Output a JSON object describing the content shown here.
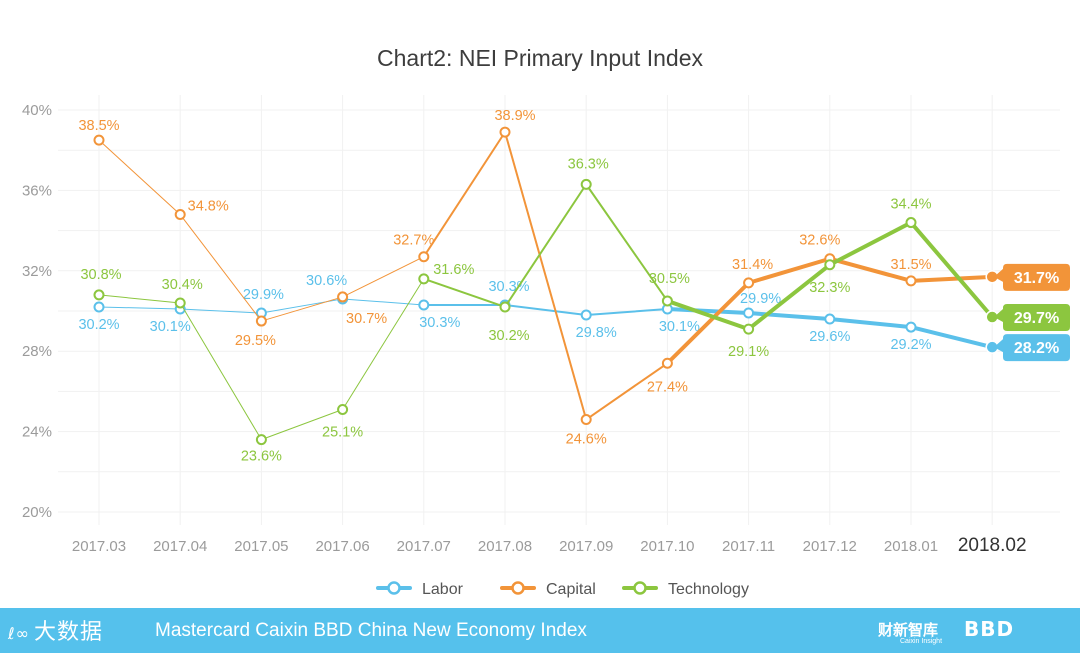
{
  "chart_data": {
    "type": "line",
    "title": "Chart2: NEI Primary Input Index",
    "x": [
      "2017.03",
      "2017.04",
      "2017.05",
      "2017.06",
      "2017.07",
      "2017.08",
      "2017.09",
      "2017.10",
      "2017.11",
      "2017.12",
      "2018.01",
      "2018.02"
    ],
    "y_ticks": [
      "40%",
      "36%",
      "32%",
      "28%",
      "24%",
      "20%"
    ],
    "ylim": [
      20,
      40
    ],
    "grid": true,
    "legend_position": "bottom",
    "series": [
      {
        "name": "Labor",
        "color": "#5bc0ea",
        "values": [
          30.2,
          30.1,
          29.9,
          30.6,
          30.3,
          30.3,
          29.8,
          30.1,
          29.9,
          29.6,
          29.2,
          28.2
        ],
        "labels": [
          "30.2%",
          "30.1%",
          "29.9%",
          "30.6%",
          "30.3%",
          "30.3%",
          "29.8%",
          "30.1%",
          "29.9%",
          "29.6%",
          "29.2%",
          "28.2%"
        ]
      },
      {
        "name": "Capital",
        "color": "#f29439",
        "values": [
          38.5,
          34.8,
          29.5,
          30.7,
          32.7,
          38.9,
          24.6,
          27.4,
          31.4,
          32.6,
          31.5,
          31.7
        ],
        "labels": [
          "38.5%",
          "34.8%",
          "29.5%",
          "30.7%",
          "32.7%",
          "38.9%",
          "24.6%",
          "27.4%",
          "31.4%",
          "32.6%",
          "31.5%",
          "31.7%"
        ]
      },
      {
        "name": "Technology",
        "color": "#8cc63f",
        "values": [
          30.8,
          30.4,
          23.6,
          25.1,
          31.6,
          30.2,
          36.3,
          30.5,
          29.1,
          32.3,
          34.4,
          29.7
        ],
        "labels": [
          "30.8%",
          "30.4%",
          "23.6%",
          "25.1%",
          "31.6%",
          "30.2%",
          "36.3%",
          "30.5%",
          "29.1%",
          "32.3%",
          "34.4%",
          "29.7%"
        ]
      }
    ]
  },
  "footer": {
    "title": "Mastercard Caixin BBD China New Economy Index",
    "logo_left": "大数据",
    "logo_left_mark": "ℓ∞",
    "logo_caixin": "财新智库",
    "logo_caixin_sub": "Caixin Insight",
    "logo_bbd": "BBD"
  }
}
